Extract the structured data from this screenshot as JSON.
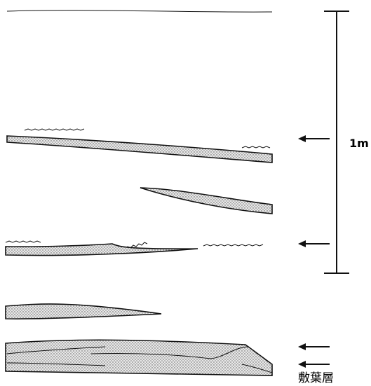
{
  "scale_label": "1m",
  "layer_label": "敷葉層"
}
